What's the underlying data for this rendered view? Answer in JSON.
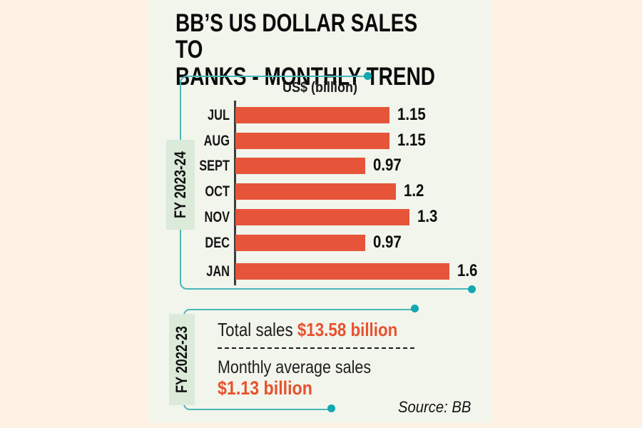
{
  "title": "BB’S US DOLLAR SALES TO\nBANKS - MONTHLY TREND",
  "axis_label": "US$ (billion)",
  "fiscal_year_chart": "FY 2023-24",
  "fiscal_year_summary": "FY 2022-23",
  "chart_data": {
    "type": "bar",
    "orientation": "horizontal",
    "title": "BB’S US DOLLAR SALES TO BANKS - MONTHLY TREND",
    "xlabel": "US$ (billion)",
    "categories": [
      "JUL",
      "AUG",
      "SEPT",
      "OCT",
      "NOV",
      "DEC",
      "JAN"
    ],
    "values": [
      1.15,
      1.15,
      0.97,
      1.2,
      1.3,
      0.97,
      1.6
    ],
    "value_labels": [
      "1.15",
      "1.15",
      "0.97",
      "1.2",
      "1.3",
      "0.97",
      "1.6"
    ],
    "xlim": [
      0,
      1.7
    ],
    "grid": false,
    "legend": false,
    "series_group": "FY 2023-24",
    "bar_color": "#e6553a"
  },
  "summary": {
    "total_label": "Total sales",
    "total_value": "$13.58 billion",
    "avg_label": "Monthly average sales",
    "avg_value": "$1.13 billion"
  },
  "source": "Source: BB",
  "colors": {
    "background_cream": "#fdf2e4",
    "panel": "#f2f5ec",
    "bar_orange": "#e6553a",
    "accent_orange_text": "#e8512e",
    "teal_line": "#4db5ba",
    "teal_dot": "#11a8b0",
    "mint_box": "#dbead9",
    "axis_line": "#3c3c3c",
    "text_black": "#0d0d0d"
  }
}
